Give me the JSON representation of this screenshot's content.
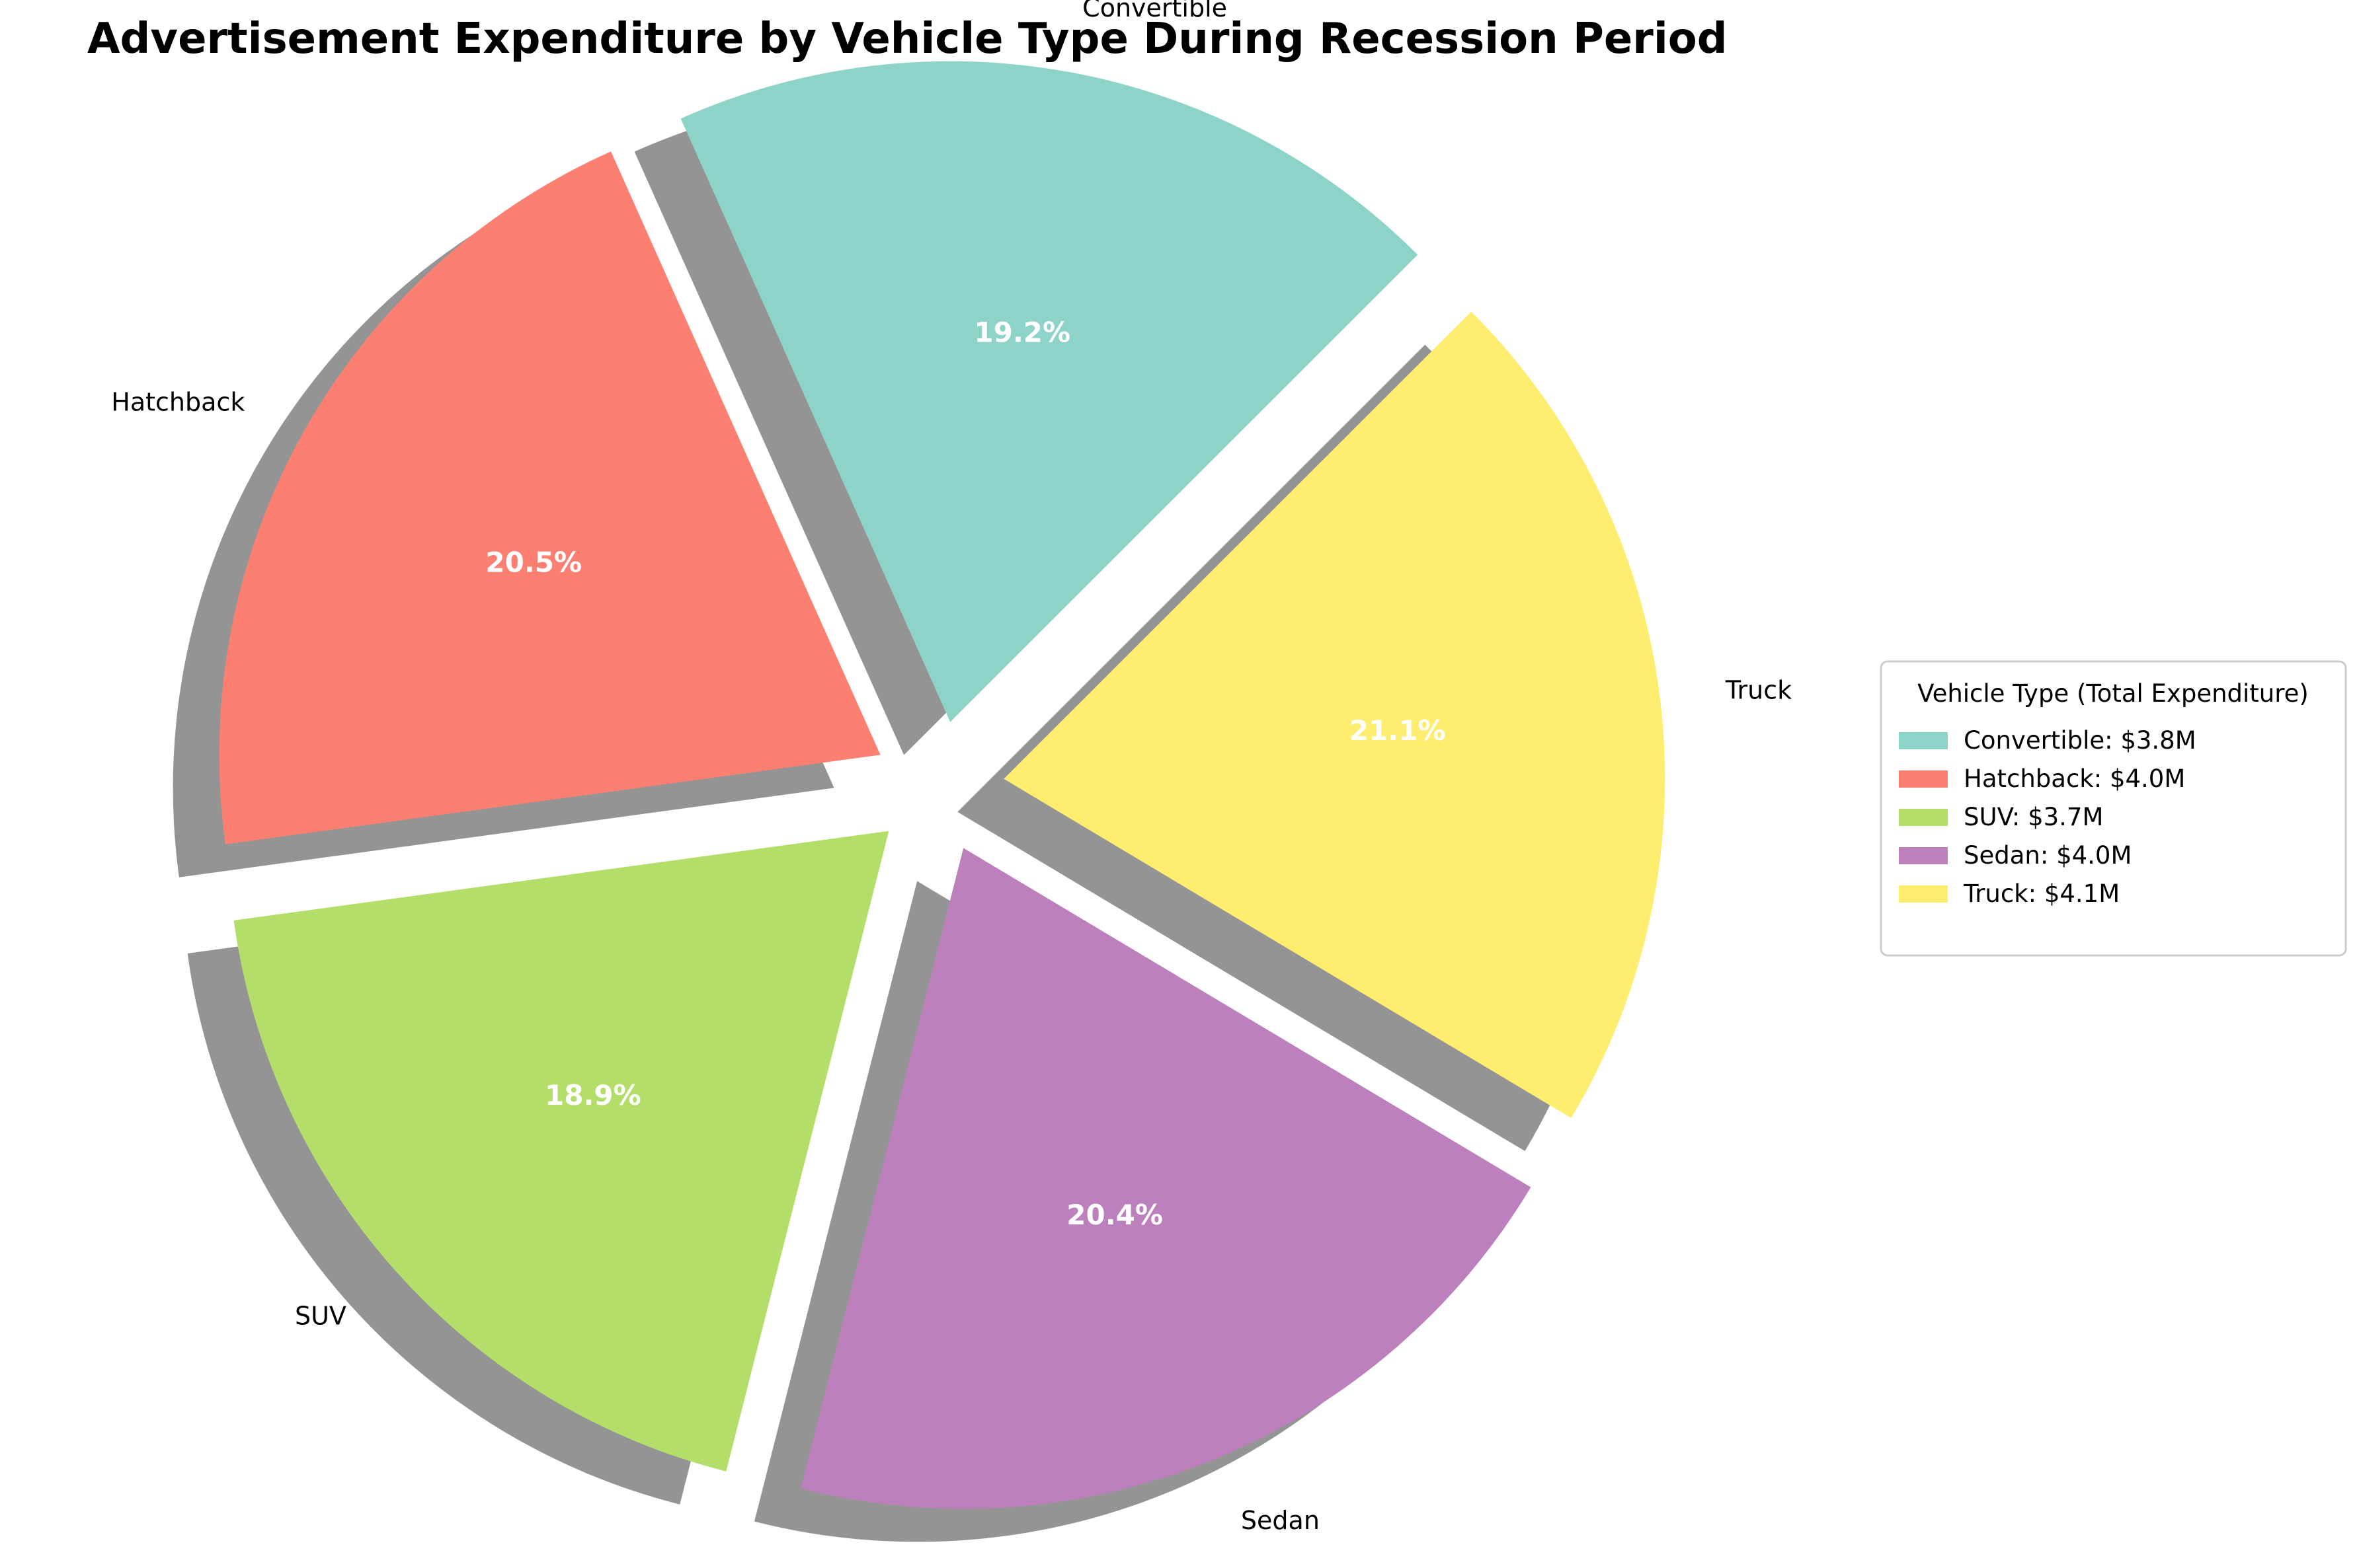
{
  "chart_data": {
    "type": "pie",
    "title": "Advertisement Expenditure by Vehicle Type During Recession Period",
    "categories": [
      "Convertible",
      "Hatchback",
      "SUV",
      "Sedan",
      "Truck"
    ],
    "percentages": [
      19.2,
      20.5,
      18.9,
      20.4,
      21.1
    ],
    "percent_labels": [
      "19.2%",
      "20.5%",
      "18.9%",
      "20.4%",
      "21.1%"
    ],
    "colors": [
      "#8dd3c7",
      "#fb8072",
      "#b3de69",
      "#bc80bd",
      "#ffed6f"
    ],
    "shadow": true,
    "exploded": true,
    "start_angle_deg": 45,
    "legend": {
      "title": "Vehicle Type (Total Expenditure)",
      "placement": "right",
      "entries": [
        "Convertible: $3.8M",
        "Hatchback: $4.0M",
        "SUV: $3.7M",
        "Sedan: $4.0M",
        "Truck: $4.1M"
      ]
    }
  }
}
